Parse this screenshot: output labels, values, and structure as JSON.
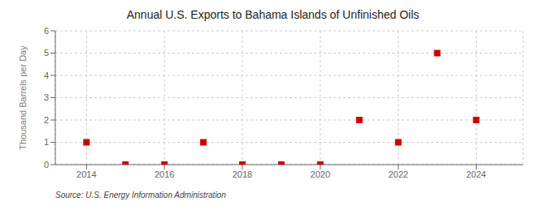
{
  "chart_data": {
    "type": "scatter",
    "title": "Annual U.S. Exports to Bahama Islands of Unfinished Oils",
    "ylabel": "Thousand Barrels per Day",
    "annotation": "Source: U.S. Energy Information Administration",
    "x": [
      2014,
      2015,
      2016,
      2017,
      2018,
      2019,
      2020,
      2021,
      2022,
      2023,
      2024
    ],
    "values": [
      1,
      0,
      0,
      1,
      0,
      0,
      0,
      2,
      1,
      5,
      2
    ],
    "xlim": [
      2013.2,
      2025.2
    ],
    "ylim": [
      0,
      6
    ],
    "xticks": [
      2014,
      2016,
      2018,
      2020,
      2022,
      2024
    ],
    "yticks": [
      0,
      1,
      2,
      3,
      4,
      5,
      6
    ],
    "grid": true,
    "color": "#cc0000",
    "marker": "square"
  }
}
